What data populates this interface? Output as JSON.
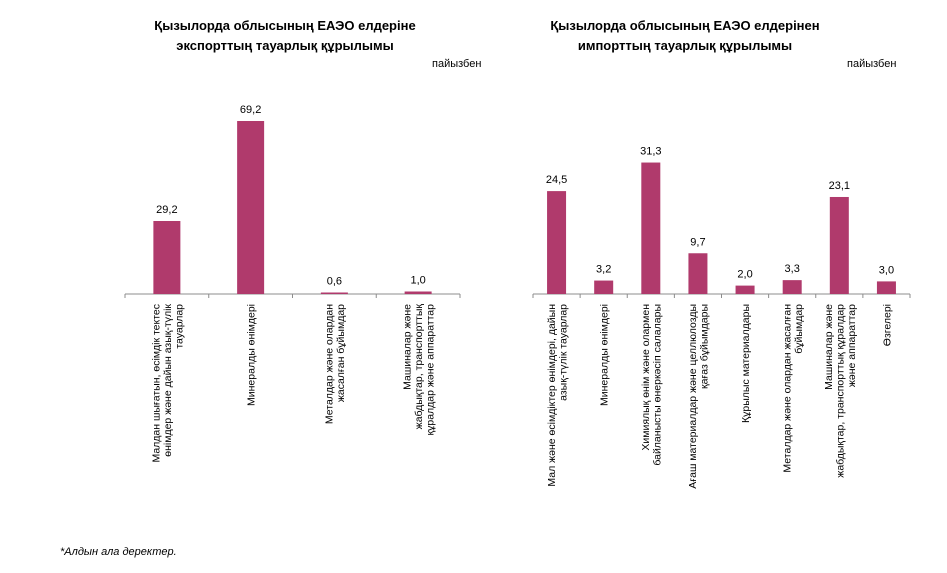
{
  "chart_data": [
    {
      "type": "bar",
      "title_line1": "Қызылорда облысының  ЕАЭО елдеріне",
      "title_line2": "экспорттың тауарлық құрылымы",
      "unit": "пайызбен",
      "categories": [
        [
          "Малдан шығатын, өсімдік тектес",
          "өнімдер және дайын азық-түлік",
          "тауарлар"
        ],
        [
          "Минералды өнімдері"
        ],
        [
          "Металдар және олардан",
          "жасалған бұйымдар"
        ],
        [
          "Машиналар және",
          "жабдықтар, транспорттық",
          "құралдар және аппараттар"
        ]
      ],
      "values": [
        29.2,
        69.2,
        0.6,
        1.0
      ],
      "value_labels": [
        "29,2",
        "69,2",
        "0,6",
        "1,0"
      ],
      "ylim": [
        0,
        80
      ],
      "bar_color": "#b03a6c",
      "grid": false
    },
    {
      "type": "bar",
      "title_line1": "Қызылорда облысының  ЕАЭО елдерінен",
      "title_line2": "импорттың тауарлық құрылымы",
      "unit": "пайызбен",
      "categories": [
        [
          "Мал және өсімдіктер өнімдері, дайын",
          "азық-түлік тауарлар"
        ],
        [
          "Минералды өнімдері"
        ],
        [
          "Химиялық өнім және олармен",
          "байланысты өнеркәсіп салалары"
        ],
        [
          "Ағаш материалдар және целлюлозды",
          "қағаз бұйымдары"
        ],
        [
          "Құрылыс материалдары"
        ],
        [
          "Металдар және олардан жасалған",
          "бұйымдар"
        ],
        [
          "Машиналар және",
          "жабдықтар, транспорттық құралдар",
          "және аппараттар"
        ],
        [
          "Өзгелері"
        ]
      ],
      "values": [
        24.5,
        3.2,
        31.3,
        9.7,
        2.0,
        3.3,
        23.1,
        3.0
      ],
      "value_labels": [
        "24,5",
        "3,2",
        "31,3",
        "9,7",
        "2,0",
        "3,3",
        "23,1",
        "3,0"
      ],
      "ylim": [
        0,
        35
      ],
      "bar_color": "#b03a6c",
      "grid": false
    }
  ],
  "footnote": "*Алдын ала деректер."
}
